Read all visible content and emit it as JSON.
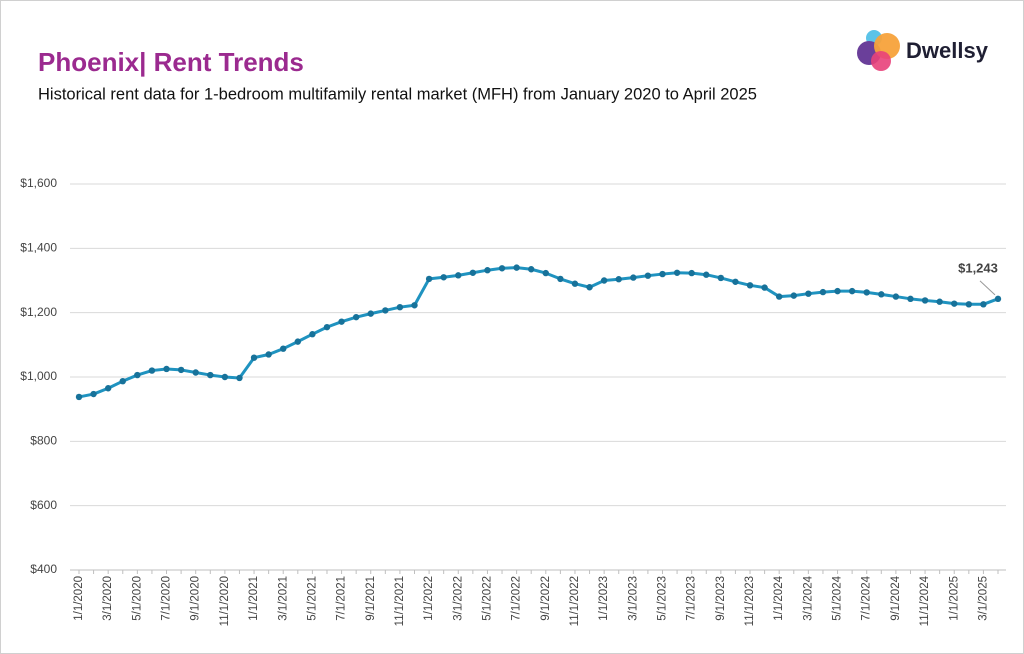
{
  "brand": "Dwellsy",
  "chart_data": {
    "type": "line",
    "title": "Phoenix| Rent Trends",
    "subtitle": "Historical rent data for 1-bedroom multifamily rental market (MFH) from January 2020 to April 2025",
    "categories": [
      "1/1/2020",
      null,
      "3/1/2020",
      null,
      "5/1/2020",
      null,
      "7/1/2020",
      null,
      "9/1/2020",
      null,
      "11/1/2020",
      null,
      "1/1/2021",
      null,
      "3/1/2021",
      null,
      "5/1/2021",
      null,
      "7/1/2021",
      null,
      "9/1/2021",
      null,
      "11/1/2021",
      null,
      "1/1/2022",
      null,
      "3/1/2022",
      null,
      "5/1/2022",
      null,
      "7/1/2022",
      null,
      "9/1/2022",
      null,
      "11/1/2022",
      null,
      "1/1/2023",
      null,
      "3/1/2023",
      null,
      "5/1/2023",
      null,
      "7/1/2023",
      null,
      "9/1/2023",
      null,
      "11/1/2023",
      null,
      "1/1/2024",
      null,
      "3/1/2024",
      null,
      "5/1/2024",
      null,
      "7/1/2024",
      null,
      "9/1/2024",
      null,
      "11/1/2024",
      null,
      "1/1/2025",
      null,
      "3/1/2025",
      null
    ],
    "series": [
      {
        "name": "Phoenix",
        "color": "#1f93c0",
        "marker_color": "#17729a",
        "values": [
          938,
          947,
          965,
          987,
          1006,
          1020,
          1025,
          1022,
          1014,
          1006,
          1000,
          997,
          1060,
          1070,
          1088,
          1110,
          1133,
          1155,
          1172,
          1186,
          1197,
          1207,
          1217,
          1223,
          1305,
          1310,
          1316,
          1324,
          1332,
          1338,
          1340,
          1335,
          1323,
          1305,
          1290,
          1279,
          1300,
          1304,
          1309,
          1315,
          1320,
          1324,
          1323,
          1318,
          1308,
          1296,
          1285,
          1278,
          1250,
          1253,
          1259,
          1264,
          1267,
          1267,
          1263,
          1257,
          1250,
          1243,
          1238,
          1234,
          1228,
          1226,
          1226,
          1243
        ],
        "value_labels": [
          null,
          null,
          null,
          null,
          null,
          null,
          null,
          null,
          null,
          null,
          null,
          null,
          null,
          null,
          null,
          null,
          null,
          null,
          null,
          null,
          null,
          null,
          null,
          null,
          null,
          null,
          null,
          null,
          null,
          null,
          null,
          null,
          null,
          null,
          null,
          null,
          null,
          null,
          null,
          null,
          null,
          null,
          null,
          null,
          null,
          null,
          null,
          null,
          null,
          null,
          null,
          null,
          null,
          null,
          null,
          null,
          null,
          null,
          null,
          null,
          null,
          null,
          null,
          "$1,243"
        ]
      }
    ],
    "ylim": [
      400,
      1600
    ],
    "yticks": [
      {
        "value": 400,
        "label": "$400"
      },
      {
        "value": 600,
        "label": "$600"
      },
      {
        "value": 800,
        "label": "$800"
      },
      {
        "value": 1000,
        "label": "$1,000"
      },
      {
        "value": 1200,
        "label": "$1,200"
      },
      {
        "value": 1400,
        "label": "$1,400"
      },
      {
        "value": 1600,
        "label": "$1,600"
      }
    ],
    "grid": true
  }
}
